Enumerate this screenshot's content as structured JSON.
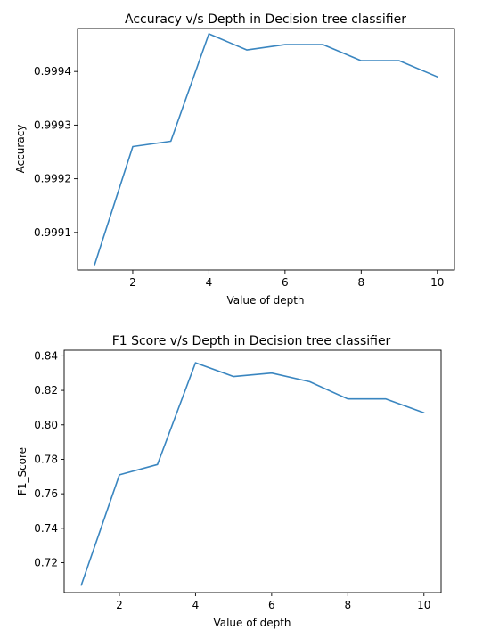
{
  "chart_data": [
    {
      "type": "line",
      "title": "Accuracy v/s Depth in Decision tree classifier",
      "xlabel": "Value of depth",
      "ylabel": "Accuracy",
      "x": [
        1,
        2,
        3,
        4,
        5,
        6,
        7,
        8,
        9,
        10
      ],
      "xticks": [
        2,
        4,
        6,
        8,
        10
      ],
      "xtick_labels": [
        "2",
        "4",
        "6",
        "8",
        "10"
      ],
      "xlim": [
        0.55,
        10.45
      ],
      "yticks": [
        0.9991,
        0.9992,
        0.9993,
        0.9994
      ],
      "ytick_labels": [
        "0.9991",
        "0.9992",
        "0.9993",
        "0.9994"
      ],
      "ylim": [
        0.99903,
        0.99948
      ],
      "grid": false,
      "color": "#3a86c0",
      "series": [
        {
          "values": [
            0.99904,
            0.99926,
            0.99927,
            0.99947,
            0.99944,
            0.99945,
            0.99945,
            0.99942,
            0.99942,
            0.99939
          ]
        }
      ]
    },
    {
      "type": "line",
      "title": "F1 Score v/s Depth in Decision tree classifier",
      "xlabel": "Value of depth",
      "ylabel": "F1_Score",
      "x": [
        1,
        2,
        3,
        4,
        5,
        6,
        7,
        8,
        9,
        10
      ],
      "xticks": [
        2,
        4,
        6,
        8,
        10
      ],
      "xtick_labels": [
        "2",
        "4",
        "6",
        "8",
        "10"
      ],
      "xlim": [
        0.55,
        10.45
      ],
      "yticks": [
        0.72,
        0.74,
        0.76,
        0.78,
        0.8,
        0.82,
        0.84
      ],
      "ytick_labels": [
        "0.72",
        "0.74",
        "0.76",
        "0.78",
        "0.80",
        "0.82",
        "0.84"
      ],
      "ylim": [
        0.7027,
        0.8433
      ],
      "grid": false,
      "color": "#3a86c0",
      "series": [
        {
          "values": [
            0.707,
            0.771,
            0.777,
            0.836,
            0.828,
            0.83,
            0.825,
            0.815,
            0.815,
            0.807
          ]
        }
      ]
    }
  ]
}
